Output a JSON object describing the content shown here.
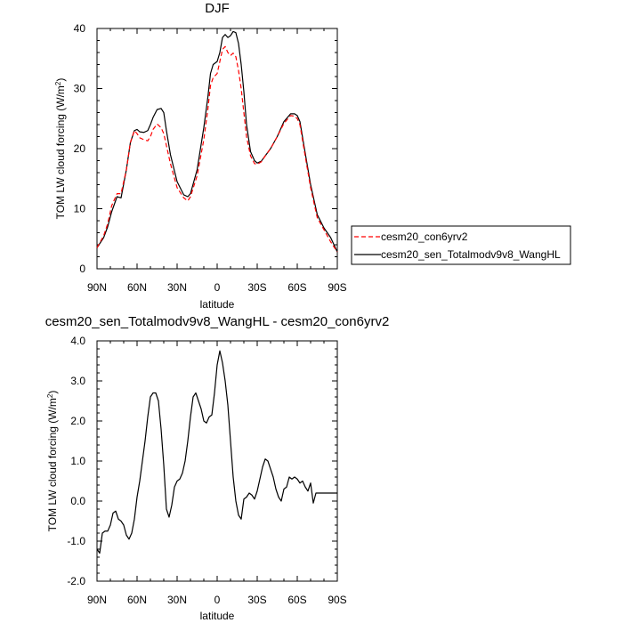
{
  "chart_data": [
    {
      "type": "line",
      "title": "DJF",
      "xlabel": "latitude",
      "ylabel_main": "TOM LW cloud forcing (W/m",
      "ylabel_sup": "2",
      "ylabel_close": ")",
      "xlim": [
        -90,
        90
      ],
      "ylim": [
        0,
        40
      ],
      "x_ticks": [
        -90,
        -60,
        -30,
        0,
        30,
        60,
        90
      ],
      "x_tick_labels": [
        "90N",
        "60N",
        "30N",
        "0",
        "30S",
        "60S",
        "90S"
      ],
      "y_ticks": [
        0,
        10,
        20,
        30,
        40
      ],
      "y_tick_labels": [
        "0",
        "10",
        "20",
        "30",
        "40"
      ],
      "legend_position": "right",
      "series": [
        {
          "name": "cesm20_con6yrv2",
          "color": "#ff0000",
          "dash": "dashed",
          "x": [
            -90,
            -85,
            -82,
            -79,
            -75,
            -72,
            -68,
            -65,
            -62,
            -60,
            -58,
            -55,
            -52,
            -50,
            -48,
            -45,
            -42,
            -40,
            -38,
            -35,
            -30,
            -25,
            -22,
            -20,
            -15,
            -10,
            -7,
            -5,
            -3,
            0,
            2,
            4,
            6,
            8,
            10,
            12,
            14,
            16,
            18,
            20,
            22,
            25,
            28,
            30,
            33,
            36,
            40,
            45,
            50,
            55,
            58,
            60,
            62,
            65,
            70,
            75,
            80,
            85,
            90
          ],
          "y": [
            3.5,
            5.5,
            7.5,
            10.5,
            12.5,
            12.5,
            16.5,
            21.0,
            23.0,
            22.5,
            21.8,
            21.5,
            21.3,
            22.0,
            23.2,
            24.1,
            23.5,
            22.5,
            20.5,
            17.5,
            13.5,
            11.8,
            11.3,
            12.0,
            15.5,
            21.5,
            26.5,
            30.5,
            31.8,
            32.5,
            34.5,
            36.5,
            37.0,
            36.0,
            35.5,
            35.9,
            35.3,
            33.0,
            30.0,
            26.0,
            22.0,
            18.8,
            17.5,
            17.4,
            17.8,
            18.8,
            20.0,
            22.0,
            24.2,
            25.5,
            25.4,
            25.0,
            24.0,
            20.0,
            13.5,
            8.5,
            6.5,
            4.5,
            2.8
          ]
        },
        {
          "name": "cesm20_sen_Totalmodv9v8_WangHL",
          "color": "#000000",
          "dash": "solid",
          "x": [
            -90,
            -85,
            -82,
            -79,
            -75,
            -72,
            -68,
            -65,
            -62,
            -60,
            -58,
            -55,
            -52,
            -50,
            -48,
            -45,
            -42,
            -40,
            -38,
            -35,
            -30,
            -25,
            -22,
            -20,
            -15,
            -10,
            -7,
            -5,
            -3,
            0,
            2,
            4,
            6,
            8,
            10,
            12,
            14,
            16,
            18,
            20,
            22,
            25,
            28,
            30,
            33,
            36,
            40,
            45,
            50,
            55,
            58,
            60,
            62,
            65,
            70,
            75,
            80,
            85,
            90
          ],
          "y": [
            3.5,
            5.2,
            7.0,
            9.5,
            12.0,
            11.8,
            16.5,
            21.0,
            23.0,
            23.2,
            22.8,
            22.7,
            23.0,
            24.0,
            25.2,
            26.5,
            26.7,
            26.0,
            23.0,
            19.0,
            14.5,
            12.3,
            12.0,
            12.5,
            16.5,
            23.5,
            28.5,
            32.5,
            34.0,
            34.5,
            36.0,
            38.5,
            39.0,
            38.5,
            38.8,
            39.5,
            39.3,
            37.5,
            34.0,
            29.5,
            24.0,
            19.5,
            18.0,
            17.6,
            17.9,
            18.8,
            20.0,
            22.0,
            24.5,
            25.8,
            25.8,
            25.5,
            24.5,
            20.5,
            14.0,
            9.0,
            6.8,
            5.2,
            2.8
          ]
        }
      ]
    },
    {
      "type": "line",
      "title": "cesm20_sen_Totalmodv9v8_WangHL - cesm20_con6yrv2",
      "xlabel": "latitude",
      "ylabel_main": "TOM LW cloud forcing (W/m",
      "ylabel_sup": "2",
      "ylabel_close": ")",
      "xlim": [
        -90,
        90
      ],
      "ylim": [
        -2.0,
        4.0
      ],
      "x_ticks": [
        -90,
        -60,
        -30,
        0,
        30,
        60,
        90
      ],
      "x_tick_labels": [
        "90N",
        "60N",
        "30N",
        "0",
        "30S",
        "60S",
        "90S"
      ],
      "y_ticks": [
        -2,
        -1,
        0,
        1,
        2,
        3,
        4
      ],
      "y_tick_labels": [
        "-2.0",
        "-1.0",
        "0.0",
        "1.0",
        "2.0",
        "3.0",
        "4.0"
      ],
      "series": [
        {
          "name": "",
          "color": "#000000",
          "dash": "solid",
          "x": [
            -90,
            -88,
            -86,
            -84,
            -82,
            -80,
            -78,
            -76,
            -74,
            -72,
            -70,
            -68,
            -66,
            -64,
            -62,
            -60,
            -58,
            -56,
            -54,
            -52,
            -50,
            -48,
            -46,
            -44,
            -42,
            -40,
            -38,
            -36,
            -34,
            -32,
            -30,
            -28,
            -26,
            -24,
            -22,
            -20,
            -18,
            -16,
            -14,
            -12,
            -10,
            -8,
            -6,
            -4,
            -2,
            0,
            2,
            4,
            6,
            8,
            10,
            12,
            14,
            16,
            18,
            20,
            22,
            24,
            26,
            28,
            30,
            32,
            34,
            36,
            38,
            40,
            42,
            44,
            46,
            48,
            50,
            52,
            54,
            56,
            58,
            60,
            62,
            64,
            66,
            68,
            70,
            72,
            74,
            76,
            78,
            80,
            82,
            84,
            86,
            88,
            90
          ],
          "y": [
            -1.2,
            -1.3,
            -0.8,
            -0.75,
            -0.75,
            -0.6,
            -0.3,
            -0.25,
            -0.45,
            -0.5,
            -0.6,
            -0.85,
            -0.95,
            -0.8,
            -0.45,
            0.1,
            0.5,
            1.0,
            1.5,
            2.1,
            2.6,
            2.7,
            2.7,
            2.5,
            1.8,
            0.9,
            -0.2,
            -0.4,
            -0.1,
            0.35,
            0.5,
            0.55,
            0.7,
            1.0,
            1.5,
            2.1,
            2.6,
            2.7,
            2.5,
            2.3,
            2.0,
            1.95,
            2.1,
            2.15,
            2.7,
            3.4,
            3.75,
            3.45,
            3.0,
            2.4,
            1.5,
            0.6,
            0.0,
            -0.35,
            -0.45,
            0.05,
            0.1,
            0.2,
            0.15,
            0.05,
            0.25,
            0.55,
            0.85,
            1.05,
            1.0,
            0.8,
            0.6,
            0.3,
            0.1,
            0.0,
            0.3,
            0.35,
            0.6,
            0.55,
            0.6,
            0.55,
            0.45,
            0.5,
            0.35,
            0.25,
            0.45,
            -0.05,
            0.2,
            0.2,
            0.2,
            0.2,
            0.2,
            0.2,
            0.2,
            0.2,
            0.2
          ]
        }
      ]
    }
  ]
}
